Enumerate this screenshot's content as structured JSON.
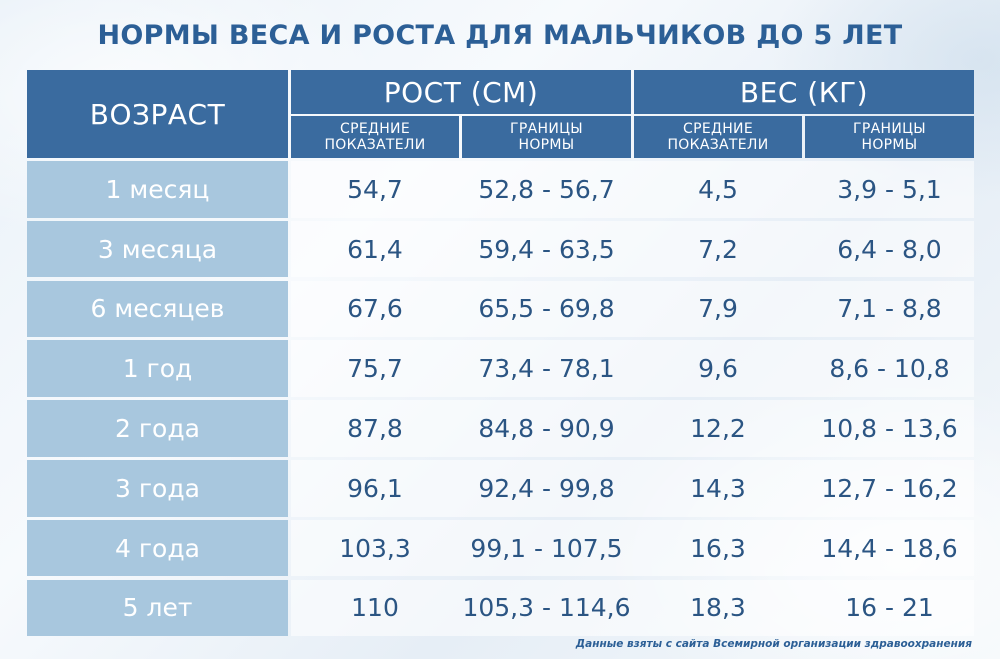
{
  "title": "НОРМЫ ВЕСА И РОСТА ДЛЯ МАЛЬЧИКОВ ДО 5 ЛЕТ",
  "header": {
    "age": "ВОЗРАСТ",
    "height_group": "РОСТ (СМ)",
    "weight_group": "ВЕС (КГ)",
    "sub": {
      "height_avg": [
        "СРЕДНИЕ",
        "ПОКАЗАТЕЛИ"
      ],
      "height_range": [
        "ГРАНИЦЫ",
        "НОРМЫ"
      ],
      "weight_avg": [
        "СРЕДНИЕ",
        "ПОКАЗАТЕЛИ"
      ],
      "weight_range": [
        "ГРАНИЦЫ",
        "НОРМЫ"
      ]
    }
  },
  "rows": [
    {
      "age": "1 месяц",
      "h_avg": "54,7",
      "h_range": "52,8 - 56,7",
      "w_avg": "4,5",
      "w_range": "3,9 - 5,1"
    },
    {
      "age": "3 месяца",
      "h_avg": "61,4",
      "h_range": "59,4 - 63,5",
      "w_avg": "7,2",
      "w_range": "6,4 - 8,0"
    },
    {
      "age": "6 месяцев",
      "h_avg": "67,6",
      "h_range": "65,5 - 69,8",
      "w_avg": "7,9",
      "w_range": "7,1 - 8,8"
    },
    {
      "age": "1 год",
      "h_avg": "75,7",
      "h_range": "73,4 - 78,1",
      "w_avg": "9,6",
      "w_range": "8,6 - 10,8"
    },
    {
      "age": "2 года",
      "h_avg": "87,8",
      "h_range": "84,8 - 90,9",
      "w_avg": "12,2",
      "w_range": "10,8 - 13,6"
    },
    {
      "age": "3 года",
      "h_avg": "96,1",
      "h_range": "92,4 - 99,8",
      "w_avg": "14,3",
      "w_range": "12,7 - 16,2"
    },
    {
      "age": "4 года",
      "h_avg": "103,3",
      "h_range": "99,1 - 107,5",
      "w_avg": "16,3",
      "w_range": "14,4 - 18,6"
    },
    {
      "age": "5 лет",
      "h_avg": "110",
      "h_range": "105,3 - 114,6",
      "w_avg": "18,3",
      "w_range": "16 - 21"
    }
  ],
  "footnote": "Данные взяты с сайта Всемирной организации здравоохранения",
  "colors": {
    "header_bg": "#3a6b9f",
    "age_cell_bg": "#a8c7de",
    "value_text": "#2b5583",
    "title_text": "#2c5f96"
  }
}
